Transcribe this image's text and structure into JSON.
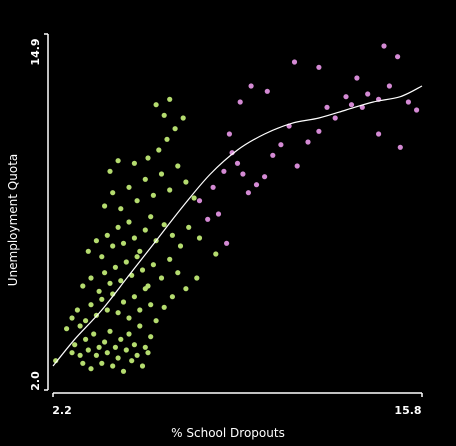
{
  "chart_data": {
    "type": "scatter",
    "xlabel": "% School Dropouts",
    "ylabel": "Unemployment Quota",
    "xlim": [
      2.2,
      15.8
    ],
    "ylim": [
      2.0,
      14.9
    ],
    "x_tick_labels": [
      "2.2",
      "15.8"
    ],
    "y_tick_labels": [
      "2.0",
      "14.9"
    ],
    "grid": false,
    "legend": "none",
    "colors": {
      "background": "#000000",
      "axis": "#ffffff",
      "group_a": "#b5dc6f",
      "group_b": "#d48ad4",
      "trend": "#ffffff"
    },
    "series": [
      {
        "color": "#b5dc6f",
        "points": [
          [
            2.3,
            2.5
          ],
          [
            2.9,
            2.8
          ],
          [
            3.0,
            3.1
          ],
          [
            3.2,
            2.7
          ],
          [
            3.3,
            2.4
          ],
          [
            3.4,
            3.3
          ],
          [
            3.5,
            2.9
          ],
          [
            3.6,
            2.2
          ],
          [
            3.7,
            3.5
          ],
          [
            3.8,
            2.7
          ],
          [
            3.9,
            3.0
          ],
          [
            4.0,
            2.4
          ],
          [
            4.1,
            3.2
          ],
          [
            4.2,
            2.8
          ],
          [
            4.3,
            3.6
          ],
          [
            4.4,
            2.3
          ],
          [
            4.5,
            3.0
          ],
          [
            4.6,
            2.6
          ],
          [
            4.7,
            3.3
          ],
          [
            4.8,
            2.1
          ],
          [
            4.9,
            2.9
          ],
          [
            5.0,
            3.5
          ],
          [
            5.1,
            2.5
          ],
          [
            5.2,
            3.1
          ],
          [
            5.3,
            2.7
          ],
          [
            5.4,
            3.8
          ],
          [
            5.5,
            2.3
          ],
          [
            5.6,
            3.0
          ],
          [
            5.7,
            2.8
          ],
          [
            5.8,
            3.4
          ],
          [
            2.9,
            4.1
          ],
          [
            3.1,
            4.4
          ],
          [
            3.4,
            4.0
          ],
          [
            3.6,
            4.6
          ],
          [
            3.8,
            4.2
          ],
          [
            4.0,
            4.8
          ],
          [
            4.2,
            4.4
          ],
          [
            4.4,
            5.0
          ],
          [
            4.6,
            4.3
          ],
          [
            4.8,
            4.7
          ],
          [
            5.0,
            4.1
          ],
          [
            5.2,
            4.9
          ],
          [
            5.4,
            4.4
          ],
          [
            5.6,
            5.2
          ],
          [
            5.8,
            4.6
          ],
          [
            6.0,
            4.0
          ],
          [
            6.3,
            4.5
          ],
          [
            6.6,
            4.9
          ],
          [
            3.3,
            5.3
          ],
          [
            3.6,
            5.6
          ],
          [
            3.9,
            5.1
          ],
          [
            4.1,
            5.8
          ],
          [
            4.3,
            5.4
          ],
          [
            4.5,
            6.0
          ],
          [
            4.7,
            5.5
          ],
          [
            4.9,
            6.2
          ],
          [
            5.1,
            5.7
          ],
          [
            5.3,
            6.4
          ],
          [
            5.5,
            5.9
          ],
          [
            5.7,
            5.3
          ],
          [
            5.9,
            6.1
          ],
          [
            6.2,
            5.6
          ],
          [
            6.5,
            6.3
          ],
          [
            6.8,
            5.8
          ],
          [
            7.1,
            5.2
          ],
          [
            7.5,
            5.6
          ],
          [
            3.5,
            6.6
          ],
          [
            3.8,
            7.0
          ],
          [
            4.0,
            6.4
          ],
          [
            4.2,
            7.2
          ],
          [
            4.4,
            6.8
          ],
          [
            4.6,
            7.5
          ],
          [
            4.8,
            6.9
          ],
          [
            5.0,
            7.7
          ],
          [
            5.2,
            7.1
          ],
          [
            5.4,
            6.6
          ],
          [
            5.6,
            7.4
          ],
          [
            5.8,
            7.9
          ],
          [
            6.0,
            7.0
          ],
          [
            6.3,
            7.6
          ],
          [
            6.6,
            7.2
          ],
          [
            6.9,
            6.8
          ],
          [
            7.2,
            7.5
          ],
          [
            7.6,
            7.1
          ],
          [
            8.2,
            6.5
          ],
          [
            4.1,
            8.3
          ],
          [
            4.4,
            8.8
          ],
          [
            4.7,
            8.2
          ],
          [
            5.0,
            9.0
          ],
          [
            5.3,
            8.5
          ],
          [
            5.6,
            9.3
          ],
          [
            5.9,
            8.7
          ],
          [
            6.2,
            9.5
          ],
          [
            6.5,
            8.9
          ],
          [
            6.8,
            9.8
          ],
          [
            7.1,
            9.2
          ],
          [
            7.4,
            8.6
          ],
          [
            4.3,
            9.6
          ],
          [
            5.7,
            10.1
          ],
          [
            6.1,
            10.4
          ],
          [
            6.4,
            10.8
          ],
          [
            6.7,
            11.2
          ],
          [
            6.3,
            11.7
          ],
          [
            6.5,
            12.3
          ],
          [
            6.0,
            12.1
          ],
          [
            7.0,
            11.6
          ],
          [
            5.2,
            9.9
          ],
          [
            4.6,
            10.0
          ],
          [
            2.7,
            3.7
          ],
          [
            3.2,
            3.8
          ]
        ]
      },
      {
        "color": "#d48ad4",
        "points": [
          [
            8.5,
            9.6
          ],
          [
            8.8,
            10.3
          ],
          [
            9.0,
            9.9
          ],
          [
            9.2,
            9.5
          ],
          [
            8.3,
            8.0
          ],
          [
            8.6,
            6.9
          ],
          [
            9.4,
            8.8
          ],
          [
            9.7,
            9.1
          ],
          [
            10.0,
            9.4
          ],
          [
            10.3,
            10.2
          ],
          [
            10.6,
            10.6
          ],
          [
            10.9,
            11.3
          ],
          [
            11.2,
            9.8
          ],
          [
            11.6,
            10.7
          ],
          [
            12.0,
            11.1
          ],
          [
            12.3,
            12.0
          ],
          [
            12.6,
            11.6
          ],
          [
            13.0,
            12.4
          ],
          [
            13.4,
            13.1
          ],
          [
            13.8,
            12.5
          ],
          [
            14.2,
            11.0
          ],
          [
            14.6,
            12.8
          ],
          [
            15.0,
            10.5
          ],
          [
            15.3,
            12.2
          ],
          [
            15.6,
            11.9
          ],
          [
            14.9,
            13.9
          ],
          [
            14.4,
            14.3
          ],
          [
            13.2,
            12.1
          ],
          [
            12.0,
            13.5
          ],
          [
            11.1,
            13.7
          ],
          [
            10.1,
            12.6
          ],
          [
            9.5,
            12.8
          ],
          [
            7.6,
            8.5
          ],
          [
            7.9,
            7.8
          ],
          [
            8.1,
            9.0
          ],
          [
            9.1,
            12.2
          ],
          [
            8.7,
            11.0
          ],
          [
            13.6,
            12.0
          ],
          [
            14.2,
            12.3
          ]
        ]
      }
    ],
    "trend_line": {
      "x": [
        2.2,
        3.0,
        4.0,
        5.0,
        6.0,
        7.0,
        8.0,
        9.0,
        10.0,
        11.0,
        12.0,
        13.0,
        14.0,
        15.0,
        15.8
      ],
      "y": [
        2.3,
        3.3,
        4.4,
        5.7,
        7.0,
        8.3,
        9.5,
        10.4,
        11.0,
        11.4,
        11.6,
        11.9,
        12.2,
        12.4,
        12.8
      ]
    }
  }
}
